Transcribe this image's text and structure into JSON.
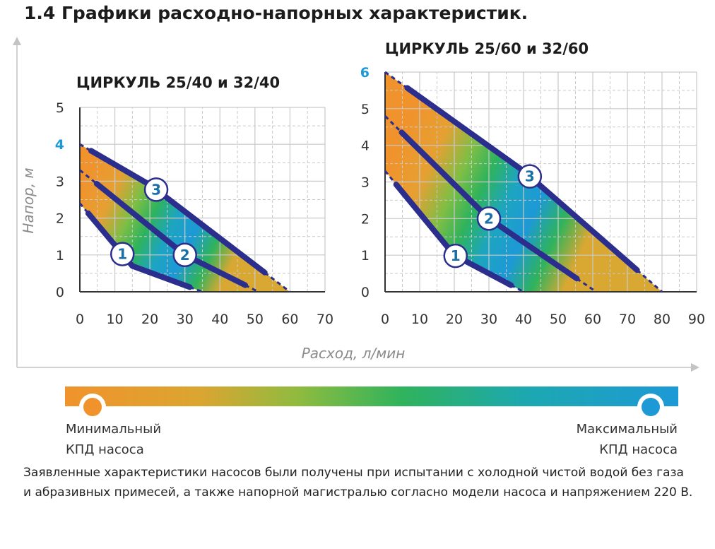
{
  "page": {
    "title": "1.4 Графики расходно-напорных характеристик."
  },
  "axes": {
    "ylabel": "Напор, м",
    "xlabel": "Расход, л/мин"
  },
  "legend": {
    "min_line1": "Минимальный",
    "min_line2": "КПД насоса",
    "max_line1": "Максимальный",
    "max_line2": "КПД насоса",
    "min_color": "#f0932c",
    "max_color": "#1d99d6"
  },
  "note": "Заявленные характеристики насосов были получены при испытании с холодной чистой водой без газа и абразивных примесей, а также напорной магистралью согласно модели насоса и напряжением 220 В.",
  "colors": {
    "curve": "#2b2e8c",
    "grid": "#c9c9c9",
    "accent_tick": "#1d99d6",
    "badge_text": "#1a6fa8"
  },
  "chart_data": [
    {
      "type": "line",
      "title": "ЦИРКУЛЬ 25/40 и 32/40",
      "xlabel": "Расход, л/мин",
      "ylabel": "Напор, м",
      "xlim": [
        0,
        70
      ],
      "ylim": [
        0,
        5
      ],
      "xticks": [
        "0",
        "10",
        "20",
        "30",
        "40",
        "50",
        "60",
        "70"
      ],
      "yticks": [
        "0",
        "1",
        "2",
        "3",
        "4",
        "5"
      ],
      "highlight_ytick": "4",
      "grid": true,
      "series": [
        {
          "name": "1",
          "x": [
            0,
            15,
            35
          ],
          "y": [
            2.4,
            0.7,
            0
          ]
        },
        {
          "name": "2",
          "x": [
            0,
            30,
            51
          ],
          "y": [
            3.3,
            1.0,
            0
          ]
        },
        {
          "name": "3",
          "x": [
            0,
            20,
            60
          ],
          "y": [
            4.0,
            2.9,
            0
          ]
        }
      ]
    },
    {
      "type": "line",
      "title": "ЦИРКУЛЬ 25/60 и 32/60",
      "xlabel": "Расход, л/мин",
      "ylabel": "Напор, м",
      "xlim": [
        0,
        90
      ],
      "ylim": [
        0,
        6
      ],
      "xticks": [
        "0",
        "10",
        "20",
        "30",
        "40",
        "50",
        "60",
        "70",
        "80",
        "90"
      ],
      "yticks": [
        "0",
        "1",
        "2",
        "3",
        "4",
        "5",
        "6"
      ],
      "highlight_ytick": "6",
      "grid": true,
      "series": [
        {
          "name": "1",
          "x": [
            0,
            20,
            40
          ],
          "y": [
            3.3,
            1.0,
            0
          ]
        },
        {
          "name": "2",
          "x": [
            0,
            30,
            61
          ],
          "y": [
            4.8,
            2.0,
            0
          ]
        },
        {
          "name": "3",
          "x": [
            0,
            40,
            80
          ],
          "y": [
            6.0,
            3.3,
            0
          ]
        }
      ]
    }
  ]
}
